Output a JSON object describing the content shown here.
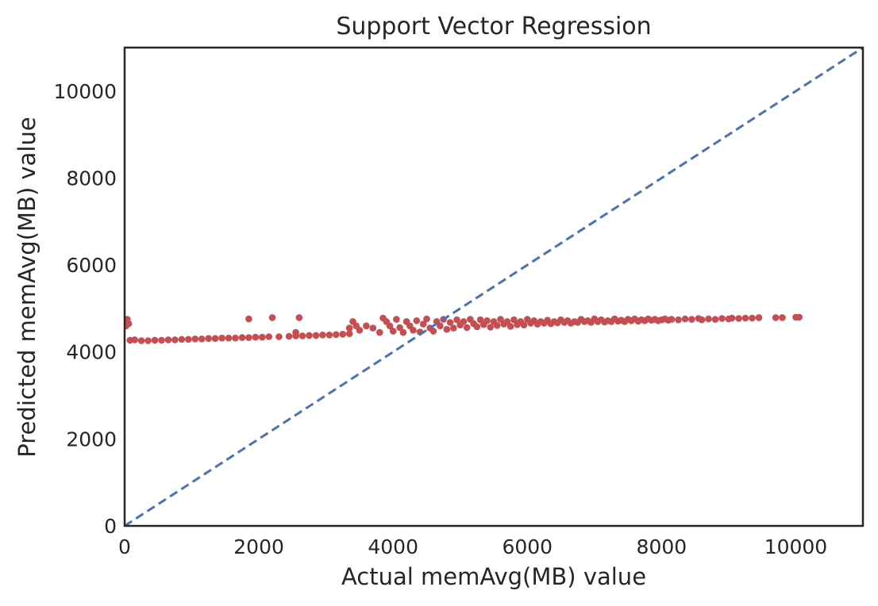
{
  "chart_data": {
    "type": "scatter",
    "title": "Support Vector Regression",
    "xlabel": "Actual memAvg(MB) value",
    "ylabel": "Predicted memAvg(MB) value",
    "xlim": [
      0,
      11000
    ],
    "ylim": [
      0,
      11000
    ],
    "xticks": [
      0,
      2000,
      4000,
      6000,
      8000,
      10000
    ],
    "yticks": [
      0,
      2000,
      4000,
      6000,
      8000,
      10000
    ],
    "xtick_labels": [
      "0",
      "2000",
      "4000",
      "6000",
      "8000",
      "10000"
    ],
    "ytick_labels": [
      "0",
      "2000",
      "4000",
      "6000",
      "8000",
      "10000"
    ],
    "grid": false,
    "series": [
      {
        "type": "scatter",
        "color": "#c44e52",
        "points": [
          [
            20,
            4600
          ],
          [
            30,
            4700
          ],
          [
            40,
            4750
          ],
          [
            60,
            4650
          ],
          [
            80,
            4270
          ],
          [
            150,
            4280
          ],
          [
            250,
            4260
          ],
          [
            350,
            4260
          ],
          [
            450,
            4270
          ],
          [
            550,
            4270
          ],
          [
            650,
            4280
          ],
          [
            750,
            4280
          ],
          [
            850,
            4290
          ],
          [
            950,
            4290
          ],
          [
            1050,
            4300
          ],
          [
            1150,
            4300
          ],
          [
            1250,
            4310
          ],
          [
            1350,
            4310
          ],
          [
            1450,
            4320
          ],
          [
            1550,
            4320
          ],
          [
            1650,
            4320
          ],
          [
            1750,
            4330
          ],
          [
            1850,
            4330
          ],
          [
            1950,
            4340
          ],
          [
            2050,
            4340
          ],
          [
            2150,
            4350
          ],
          [
            2300,
            4350
          ],
          [
            2450,
            4360
          ],
          [
            2550,
            4370
          ],
          [
            2650,
            4370
          ],
          [
            2750,
            4380
          ],
          [
            2850,
            4380
          ],
          [
            2950,
            4390
          ],
          [
            3050,
            4390
          ],
          [
            3150,
            4400
          ],
          [
            3250,
            4410
          ],
          [
            3350,
            4420
          ],
          [
            1850,
            4760
          ],
          [
            2200,
            4790
          ],
          [
            2600,
            4790
          ],
          [
            2550,
            4450
          ],
          [
            3350,
            4550
          ],
          [
            3400,
            4700
          ],
          [
            3450,
            4600
          ],
          [
            3500,
            4500
          ],
          [
            3600,
            4600
          ],
          [
            3700,
            4550
          ],
          [
            3800,
            4450
          ],
          [
            3850,
            4780
          ],
          [
            3900,
            4700
          ],
          [
            3950,
            4600
          ],
          [
            4000,
            4480
          ],
          [
            4050,
            4750
          ],
          [
            4100,
            4560
          ],
          [
            4150,
            4450
          ],
          [
            4200,
            4700
          ],
          [
            4250,
            4600
          ],
          [
            4300,
            4500
          ],
          [
            4350,
            4720
          ],
          [
            4400,
            4460
          ],
          [
            4450,
            4640
          ],
          [
            4500,
            4760
          ],
          [
            4550,
            4550
          ],
          [
            4600,
            4480
          ],
          [
            4650,
            4700
          ],
          [
            4700,
            4600
          ],
          [
            4750,
            4750
          ],
          [
            4800,
            4520
          ],
          [
            4850,
            4680
          ],
          [
            4900,
            4550
          ],
          [
            4950,
            4740
          ],
          [
            5000,
            4620
          ],
          [
            5050,
            4700
          ],
          [
            5100,
            4560
          ],
          [
            5150,
            4750
          ],
          [
            5200,
            4650
          ],
          [
            5250,
            4580
          ],
          [
            5300,
            4740
          ],
          [
            5350,
            4630
          ],
          [
            5400,
            4720
          ],
          [
            5450,
            4570
          ],
          [
            5500,
            4700
          ],
          [
            5550,
            4610
          ],
          [
            5600,
            4750
          ],
          [
            5650,
            4640
          ],
          [
            5700,
            4700
          ],
          [
            5750,
            4590
          ],
          [
            5800,
            4740
          ],
          [
            5850,
            4630
          ],
          [
            5900,
            4700
          ],
          [
            5950,
            4620
          ],
          [
            6000,
            4750
          ],
          [
            6050,
            4660
          ],
          [
            6100,
            4720
          ],
          [
            6150,
            4640
          ],
          [
            6200,
            4700
          ],
          [
            6250,
            4660
          ],
          [
            6300,
            4730
          ],
          [
            6350,
            4650
          ],
          [
            6400,
            4700
          ],
          [
            6450,
            4670
          ],
          [
            6500,
            4740
          ],
          [
            6550,
            4680
          ],
          [
            6600,
            4720
          ],
          [
            6650,
            4660
          ],
          [
            6700,
            4700
          ],
          [
            6750,
            4680
          ],
          [
            6800,
            4750
          ],
          [
            6850,
            4700
          ],
          [
            6900,
            4720
          ],
          [
            6950,
            4680
          ],
          [
            7000,
            4760
          ],
          [
            7050,
            4700
          ],
          [
            7100,
            4740
          ],
          [
            7150,
            4690
          ],
          [
            7200,
            4720
          ],
          [
            7250,
            4700
          ],
          [
            7300,
            4760
          ],
          [
            7350,
            4710
          ],
          [
            7400,
            4730
          ],
          [
            7450,
            4700
          ],
          [
            7500,
            4750
          ],
          [
            7550,
            4720
          ],
          [
            7600,
            4760
          ],
          [
            7650,
            4710
          ],
          [
            7700,
            4740
          ],
          [
            7750,
            4720
          ],
          [
            7800,
            4760
          ],
          [
            7850,
            4730
          ],
          [
            7900,
            4750
          ],
          [
            7950,
            4720
          ],
          [
            8000,
            4740
          ],
          [
            8050,
            4760
          ],
          [
            8100,
            4730
          ],
          [
            8150,
            4750
          ],
          [
            8250,
            4740
          ],
          [
            8350,
            4760
          ],
          [
            8450,
            4750
          ],
          [
            8550,
            4770
          ],
          [
            8600,
            4740
          ],
          [
            8700,
            4760
          ],
          [
            8800,
            4750
          ],
          [
            8900,
            4770
          ],
          [
            9000,
            4760
          ],
          [
            9050,
            4780
          ],
          [
            9150,
            4770
          ],
          [
            9250,
            4780
          ],
          [
            9350,
            4780
          ],
          [
            9450,
            4790
          ],
          [
            9700,
            4790
          ],
          [
            9800,
            4790
          ],
          [
            10000,
            4800
          ],
          [
            10050,
            4800
          ]
        ]
      },
      {
        "type": "line",
        "style": "dashed",
        "color": "#4c72b0",
        "points": [
          [
            0,
            0
          ],
          [
            11000,
            11000
          ]
        ]
      }
    ]
  }
}
